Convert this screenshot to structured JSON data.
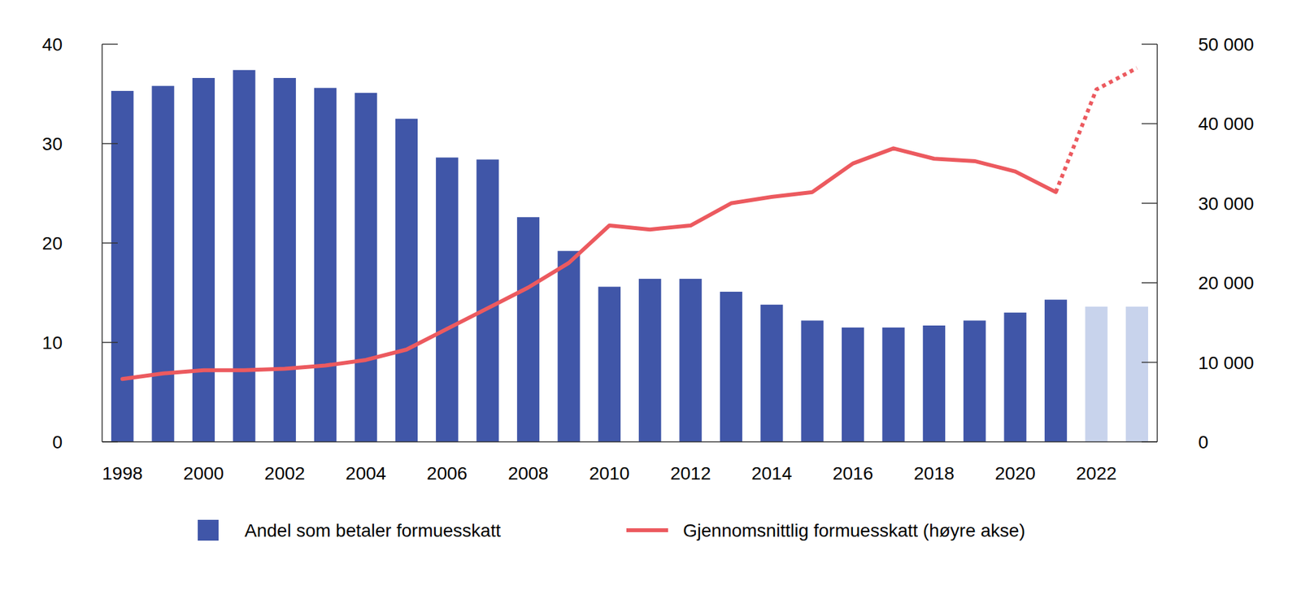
{
  "chart_data": {
    "type": "bar",
    "categories": [
      "1998",
      null,
      "2000",
      null,
      "2002",
      null,
      "2004",
      null,
      "2006",
      null,
      "2008",
      null,
      "2010",
      null,
      "2012",
      null,
      "2014",
      null,
      "2016",
      null,
      "2018",
      null,
      "2020",
      null,
      "2022",
      null
    ],
    "series": [
      {
        "name": "Andel som betaler formuesskatt",
        "type": "bar",
        "colors": [
          "#4056a8",
          "#4056a8",
          "#4056a8",
          "#4056a8",
          "#4056a8",
          "#4056a8",
          "#4056a8",
          "#4056a8",
          "#4056a8",
          "#4056a8",
          "#4056a8",
          "#4056a8",
          "#4056a8",
          "#4056a8",
          "#4056a8",
          "#4056a8",
          "#4056a8",
          "#4056a8",
          "#4056a8",
          "#4056a8",
          "#4056a8",
          "#4056a8",
          "#4056a8",
          "#4056a8",
          "#c8d3ec",
          "#c8d3ec"
        ],
        "values": [
          35.3,
          35.8,
          36.6,
          37.4,
          36.6,
          35.6,
          35.1,
          32.5,
          28.6,
          28.4,
          22.6,
          19.2,
          15.6,
          16.4,
          16.4,
          15.1,
          13.8,
          12.2,
          11.5,
          11.5,
          11.7,
          12.2,
          13.0,
          14.3,
          13.6,
          13.6
        ]
      },
      {
        "name": "Gjennomsnittlig formuesskatt (høyre akse)",
        "type": "line",
        "axis": "y2",
        "color": "#ec5a5f",
        "line_style": "solid",
        "values": [
          7900,
          8600,
          9000,
          9000,
          9200,
          9600,
          10300,
          11600,
          14200,
          16800,
          19400,
          22500,
          27200,
          26700,
          27200,
          30000,
          30800,
          31400,
          35000,
          36900,
          35600,
          35300,
          34000,
          31400,
          null,
          null
        ]
      },
      {
        "type": "line",
        "axis": "y2",
        "color": "#ec5a5f",
        "line_style": "dotted",
        "values": [
          null,
          null,
          null,
          null,
          null,
          null,
          null,
          null,
          null,
          null,
          null,
          null,
          null,
          null,
          null,
          null,
          null,
          null,
          null,
          null,
          null,
          null,
          null,
          31400,
          44300,
          47000
        ]
      }
    ],
    "ylim": [
      0,
      40
    ],
    "yticks": [
      0,
      10,
      20,
      30,
      40
    ],
    "y2lim": [
      0,
      50000
    ],
    "y2ticks": [
      0,
      {
        "value": 10000,
        "label": "10 000"
      },
      {
        "value": 20000,
        "label": "20 000"
      },
      {
        "value": 30000,
        "label": "30 000"
      },
      {
        "value": 40000,
        "label": "40 000"
      },
      {
        "value": 50000,
        "label": "50 000"
      }
    ],
    "grid": false,
    "legend": "bottom"
  }
}
